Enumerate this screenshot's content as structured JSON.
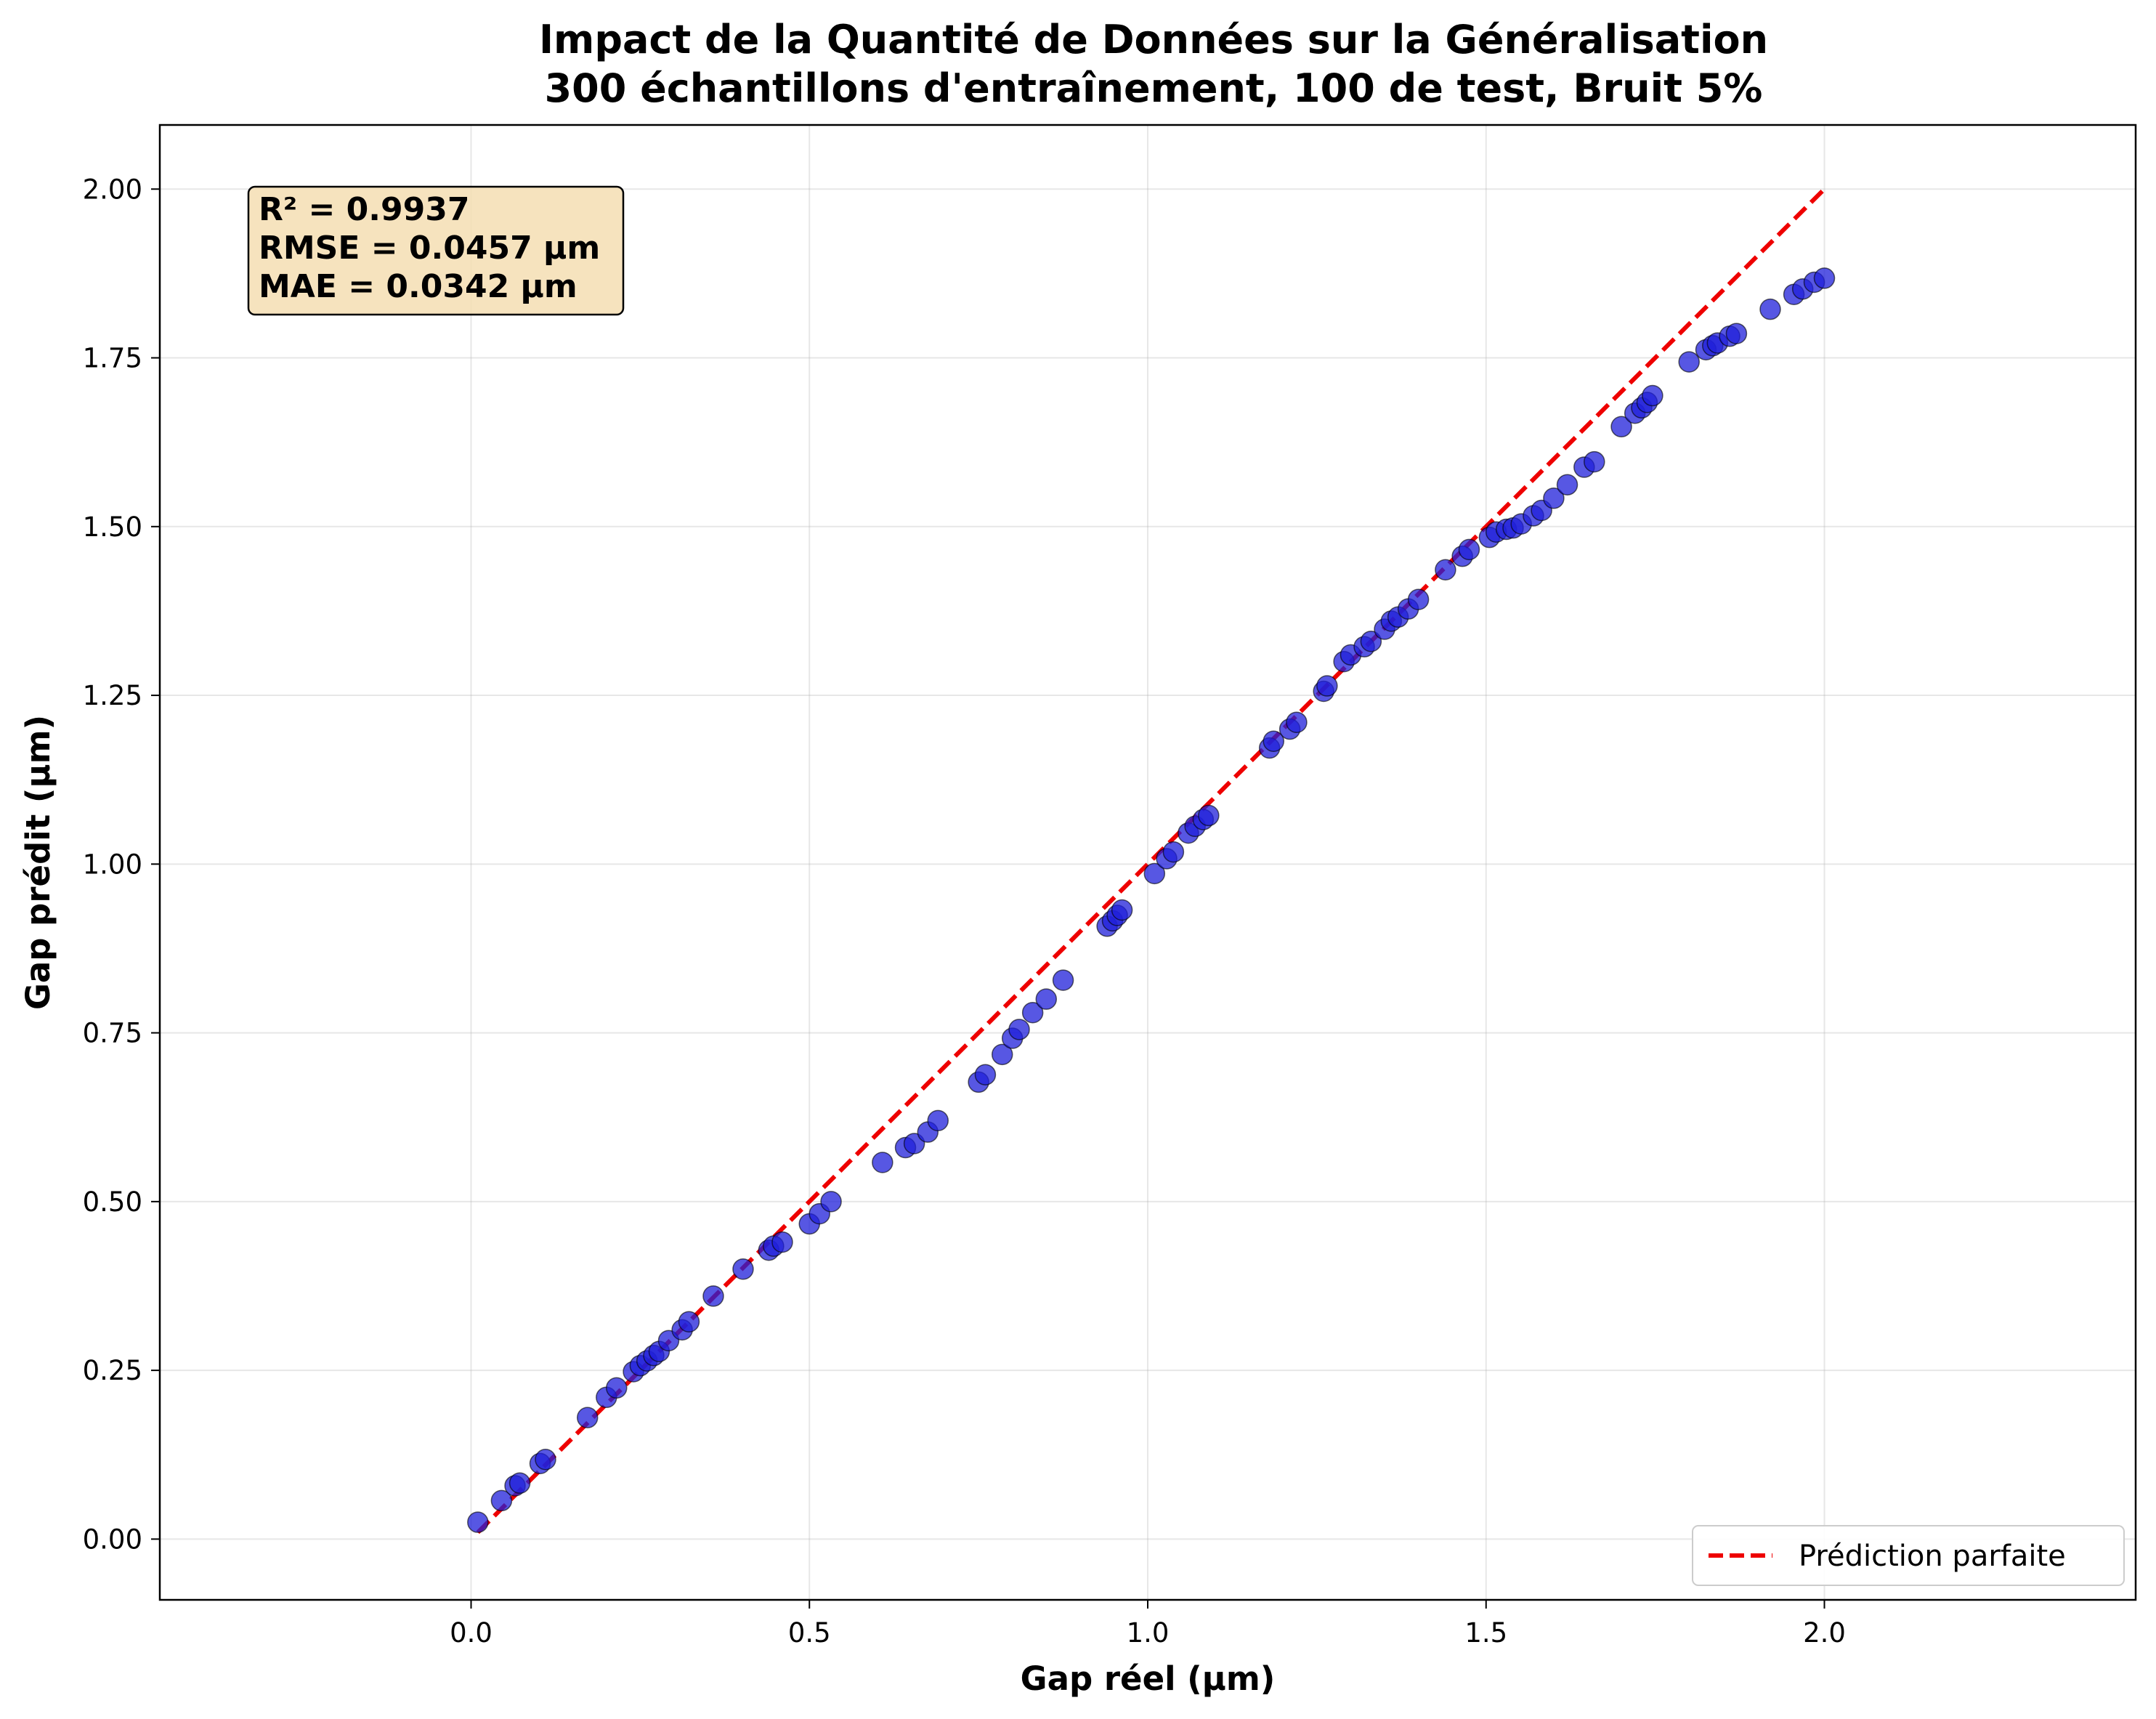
{
  "chart_data": {
    "type": "scatter",
    "title": "Impact de la Quantité de Données sur la Généralisation",
    "subtitle": "300 échantillons d'entraînement, 100 de test, Bruit 5%",
    "xlabel": "Gap réel (µm)",
    "ylabel": "Gap prédit (µm)",
    "xlim": [
      -0.46,
      2.46
    ],
    "ylim": [
      -0.09,
      2.095
    ],
    "xticks": [
      0.0,
      0.5,
      1.0,
      1.5,
      2.0
    ],
    "xtick_labels": [
      "0.0",
      "0.5",
      "1.0",
      "1.5",
      "2.0"
    ],
    "yticks": [
      0.0,
      0.25,
      0.5,
      0.75,
      1.0,
      1.25,
      1.5,
      1.75,
      2.0
    ],
    "ytick_labels": [
      "0.00",
      "0.25",
      "0.50",
      "0.75",
      "1.00",
      "1.25",
      "1.50",
      "1.75",
      "2.00"
    ],
    "grid": true,
    "legend_position": "lower-right",
    "point_color": "#1f1fd9",
    "line_color": "#ee0000",
    "stats": [
      "R² = 0.9937",
      "RMSE = 0.0457 µm",
      "MAE = 0.0342 µm"
    ],
    "reference_line": {
      "name": "Prédiction parfaite",
      "x": [
        0.01,
        2.0
      ],
      "y": [
        0.01,
        2.0
      ]
    },
    "points": {
      "x": [
        0.01,
        0.045,
        0.065,
        0.072,
        0.102,
        0.11,
        0.172,
        0.2,
        0.215,
        0.24,
        0.25,
        0.26,
        0.27,
        0.278,
        0.292,
        0.312,
        0.322,
        0.358,
        0.402,
        0.44,
        0.447,
        0.46,
        0.5,
        0.515,
        0.532,
        0.608,
        0.642,
        0.655,
        0.675,
        0.69,
        0.75,
        0.76,
        0.785,
        0.8,
        0.81,
        0.83,
        0.85,
        0.875,
        0.94,
        0.948,
        0.955,
        0.962,
        1.01,
        1.028,
        1.038,
        1.06,
        1.07,
        1.082,
        1.09,
        1.18,
        1.186,
        1.21,
        1.22,
        1.26,
        1.265,
        1.29,
        1.3,
        1.32,
        1.33,
        1.35,
        1.36,
        1.37,
        1.385,
        1.4,
        1.44,
        1.465,
        1.475,
        1.505,
        1.515,
        1.53,
        1.54,
        1.552,
        1.57,
        1.582,
        1.6,
        1.62,
        1.645,
        1.66,
        1.7,
        1.72,
        1.73,
        1.738,
        1.746,
        1.8,
        1.825,
        1.835,
        1.842,
        1.86,
        1.87,
        1.92,
        1.955,
        1.968,
        1.985,
        2.0
      ],
      "y": [
        0.025,
        0.057,
        0.079,
        0.083,
        0.112,
        0.118,
        0.18,
        0.21,
        0.224,
        0.248,
        0.257,
        0.264,
        0.272,
        0.278,
        0.294,
        0.31,
        0.322,
        0.36,
        0.4,
        0.428,
        0.434,
        0.44,
        0.467,
        0.482,
        0.5,
        0.558,
        0.58,
        0.586,
        0.603,
        0.62,
        0.677,
        0.688,
        0.718,
        0.742,
        0.755,
        0.78,
        0.8,
        0.828,
        0.908,
        0.916,
        0.924,
        0.932,
        0.986,
        1.008,
        1.018,
        1.046,
        1.056,
        1.066,
        1.072,
        1.172,
        1.182,
        1.2,
        1.21,
        1.256,
        1.264,
        1.3,
        1.31,
        1.322,
        1.33,
        1.348,
        1.36,
        1.366,
        1.378,
        1.392,
        1.436,
        1.456,
        1.466,
        1.484,
        1.492,
        1.496,
        1.498,
        1.504,
        1.516,
        1.524,
        1.542,
        1.562,
        1.588,
        1.596,
        1.648,
        1.668,
        1.676,
        1.684,
        1.694,
        1.744,
        1.762,
        1.768,
        1.772,
        1.782,
        1.786,
        1.822,
        1.844,
        1.852,
        1.862,
        1.868
      ]
    }
  }
}
